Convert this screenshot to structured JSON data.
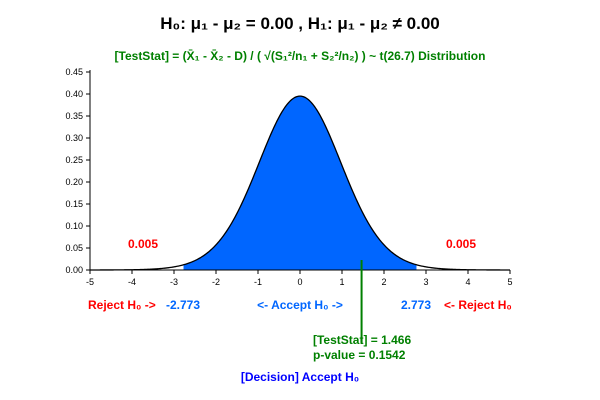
{
  "chart_data": {
    "type": "area",
    "title": "H₀: μ₁ - μ₂ = 0.00 , H₁: μ₁ - μ₂ ≠ 0.00",
    "subtitle": "[TestStat] = (X̄₁ - X̄₂ - D) / ( √(S₁²/n₁ + S₂²/n₂) ) ~ t(26.7) Distribution",
    "distribution": "t",
    "df": 26.7,
    "xlim": [
      -5,
      5
    ],
    "ylim": [
      0,
      0.45
    ],
    "x_ticks": [
      "-5",
      "-4",
      "-3",
      "-2",
      "-1",
      "0",
      "1",
      "2",
      "3",
      "4",
      "5"
    ],
    "y_ticks": [
      "0.00",
      "0.05",
      "0.10",
      "0.15",
      "0.20",
      "0.25",
      "0.30",
      "0.35",
      "0.40",
      "0.45"
    ],
    "critical_lower": -2.773,
    "critical_upper": 2.773,
    "tail_prob_left": "0.005",
    "tail_prob_right": "0.005",
    "test_stat": 1.466,
    "labels": {
      "reject_left": "Reject H₀ ->",
      "crit_left": "-2.773",
      "accept": "<- Accept H₀ ->",
      "crit_right": "2.773",
      "reject_right": "<- Reject H₀",
      "test_stat": "[TestStat] = 1.466",
      "p_value": "p-value = 0.1542",
      "decision": "[Decision] Accept H₀"
    },
    "colors": {
      "accept_fill": "#0066ff",
      "curve": "#000000",
      "reject": "#ff0000",
      "crit": "#0066ff",
      "stat": "#008000",
      "decision": "#0000ff",
      "subtitle": "#008000"
    }
  }
}
